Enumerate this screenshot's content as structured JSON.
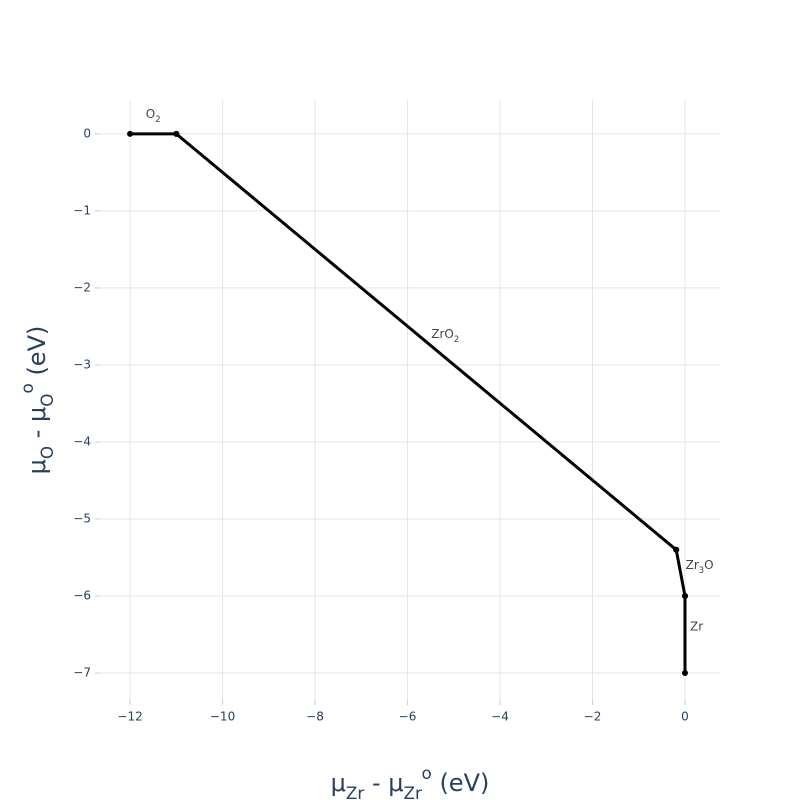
{
  "chart_data": {
    "type": "line",
    "color": "#000000",
    "grid": true,
    "xlabel": [
      {
        "text": "μ"
      },
      {
        "text": "Zr",
        "shift": "sub"
      },
      {
        "text": " - μ"
      },
      {
        "text": "Zr",
        "shift": "sub"
      },
      {
        "text": "o",
        "shift": "super"
      },
      {
        "text": " (eV)"
      }
    ],
    "ylabel": [
      {
        "text": "μ"
      },
      {
        "text": "O",
        "shift": "sub"
      },
      {
        "text": " - μ"
      },
      {
        "text": "O",
        "shift": "sub"
      },
      {
        "text": "o",
        "shift": "super"
      },
      {
        "text": " (eV)"
      }
    ],
    "xlim": [
      -12.65,
      0.757
    ],
    "ylim": [
      -7.35,
      0.44
    ],
    "xticks": [
      {
        "value": -12,
        "label": "−12"
      },
      {
        "value": -10,
        "label": "−10"
      },
      {
        "value": -8,
        "label": "−8"
      },
      {
        "value": -6,
        "label": "−6"
      },
      {
        "value": -4,
        "label": "−4"
      },
      {
        "value": -2,
        "label": "−2"
      },
      0
    ],
    "yticks": [
      0,
      {
        "value": -1,
        "label": "−1"
      },
      {
        "value": -2,
        "label": "−2"
      },
      {
        "value": -3,
        "label": "−3"
      },
      {
        "value": -4,
        "label": "−4"
      },
      {
        "value": -5,
        "label": "−5"
      },
      {
        "value": -6,
        "label": "−6"
      },
      {
        "value": -7,
        "label": "−7"
      }
    ],
    "series": [
      {
        "name": [
          {
            "text": "O"
          },
          {
            "text": "2",
            "shift": "sub"
          }
        ],
        "x": [
          -12,
          -11
        ],
        "values": [
          0,
          0
        ]
      },
      {
        "name": [
          {
            "text": "ZrO"
          },
          {
            "text": "2",
            "shift": "sub"
          }
        ],
        "x": [
          -11,
          -0.19
        ],
        "values": [
          0,
          -5.4
        ]
      },
      {
        "name": [
          {
            "text": "Zr"
          },
          {
            "text": "3",
            "shift": "sub"
          },
          {
            "text": "O"
          }
        ],
        "x": [
          -0.19,
          0
        ],
        "values": [
          -5.4,
          -6
        ]
      },
      {
        "name": [
          {
            "text": "Zr"
          }
        ],
        "x": [
          0,
          0
        ],
        "values": [
          -6,
          -7
        ]
      }
    ]
  }
}
